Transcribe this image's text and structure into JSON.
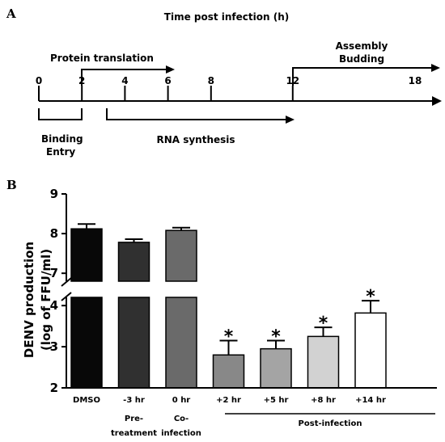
{
  "panel_a": {
    "panel_label": "A",
    "title": "Time post infection (h)",
    "ticks": [
      "0",
      "2",
      "4",
      "6",
      "8",
      "12",
      "18"
    ],
    "protein_translation": "Protein translation",
    "assembly": "Assembly",
    "budding": "Budding",
    "binding": "Binding",
    "entry": "Entry",
    "rna_synthesis": "RNA synthesis"
  },
  "panel_b": {
    "panel_label": "B",
    "ylabel_line1": "DENV production",
    "ylabel_line2": "(log of  FFU/ml)",
    "group_label": "Post-infection"
  },
  "chart_data": {
    "type": "bar",
    "categories": [
      "DMSO",
      "-3 hr",
      "0 hr",
      "+2 hr",
      "+5 hr",
      "+8 hr",
      "+14 hr"
    ],
    "category_sublabels": [
      {
        "line1": "",
        "line2": ""
      },
      {
        "line1": "Pre-",
        "line2": "treatment"
      },
      {
        "line1": "Co-",
        "line2": "infection"
      },
      {
        "line1": "",
        "line2": ""
      },
      {
        "line1": "",
        "line2": ""
      },
      {
        "line1": "",
        "line2": ""
      },
      {
        "line1": "",
        "line2": ""
      }
    ],
    "values": [
      8.12,
      7.78,
      8.08,
      2.8,
      2.95,
      3.25,
      3.82
    ],
    "errors": [
      0.12,
      0.08,
      0.07,
      0.35,
      0.2,
      0.22,
      0.3
    ],
    "significant": [
      false,
      false,
      false,
      true,
      true,
      true,
      true
    ],
    "significance_marker": "*",
    "colors": [
      "#080808",
      "#303030",
      "#6a6a6a",
      "#888888",
      "#a4a4a4",
      "#d2d2d2",
      "#ffffff"
    ],
    "y_ticks": [
      "2",
      "3",
      "4",
      "7",
      "8",
      "9"
    ],
    "ylim": [
      2,
      9
    ],
    "axis_break": [
      4.2,
      6.8
    ],
    "xlabel": "",
    "ylabel": "DENV production (log of  FFU/ml)",
    "grid": false
  }
}
